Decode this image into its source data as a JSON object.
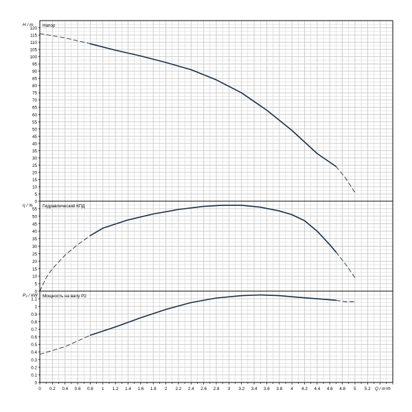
{
  "x_axis": {
    "label": "Q / m³/h",
    "min": 0,
    "max": 5.6,
    "tick_labels": [
      "0",
      "0.2",
      "0.4",
      "0.6",
      "0.8",
      "1",
      "1.2",
      "1.4",
      "1.6",
      "1.8",
      "2",
      "2.2",
      "2.4",
      "2.6",
      "2.8",
      "3",
      "3.2",
      "3.4",
      "3.6",
      "3.8",
      "4",
      "4.2",
      "4.4",
      "4.6",
      "4.8",
      "5",
      "5.2"
    ]
  },
  "colors": {
    "curve": "#1a2a3a",
    "grid": "#c8c8c8",
    "frame": "#000000"
  },
  "chart_data": [
    {
      "type": "line",
      "ylabel": "H / m",
      "series_label": "Напор",
      "ylim": [
        0,
        125
      ],
      "y_ticks": [
        0,
        5,
        10,
        15,
        20,
        25,
        30,
        35,
        40,
        45,
        50,
        55,
        60,
        65,
        70,
        75,
        80,
        85,
        90,
        95,
        100,
        105,
        110,
        115,
        120
      ],
      "grid": true,
      "series": [
        {
          "name": "Напор",
          "style": "dashed",
          "points": [
            [
              0,
              116
            ],
            [
              0.4,
              113
            ],
            [
              0.8,
              109
            ]
          ]
        },
        {
          "name": "Напор",
          "style": "solid",
          "points": [
            [
              0.8,
              109
            ],
            [
              1.2,
              104.5
            ],
            [
              1.6,
              100.5
            ],
            [
              2.0,
              96
            ],
            [
              2.4,
              91
            ],
            [
              2.8,
              84
            ],
            [
              3.2,
              75
            ],
            [
              3.6,
              63
            ],
            [
              4.0,
              49
            ],
            [
              4.4,
              33
            ],
            [
              4.7,
              24
            ]
          ]
        },
        {
          "name": "Напор",
          "style": "dashed",
          "points": [
            [
              4.7,
              24
            ],
            [
              4.85,
              16
            ],
            [
              5.0,
              6
            ]
          ]
        }
      ]
    },
    {
      "type": "line",
      "ylabel": "η / %",
      "series_label": "Гидравлический КПД",
      "ylim": [
        0,
        60
      ],
      "y_ticks": [
        0,
        5,
        10,
        15,
        20,
        25,
        30,
        35,
        40,
        45,
        50,
        55
      ],
      "grid": true,
      "series": [
        {
          "name": "Гидравлический КПД",
          "style": "dashed",
          "points": [
            [
              0,
              0
            ],
            [
              0.1,
              9
            ],
            [
              0.2,
              15
            ],
            [
              0.4,
              24
            ],
            [
              0.6,
              31
            ],
            [
              0.8,
              37
            ]
          ]
        },
        {
          "name": "Гидравлический КПД",
          "style": "solid",
          "points": [
            [
              0.8,
              37
            ],
            [
              1.0,
              42
            ],
            [
              1.4,
              47.5
            ],
            [
              1.8,
              51.5
            ],
            [
              2.2,
              54.5
            ],
            [
              2.6,
              56.5
            ],
            [
              2.9,
              57.3
            ],
            [
              3.2,
              57.3
            ],
            [
              3.5,
              56
            ],
            [
              3.8,
              53.5
            ],
            [
              4.0,
              51
            ],
            [
              4.2,
              47
            ],
            [
              4.4,
              40
            ],
            [
              4.6,
              31
            ],
            [
              4.7,
              26
            ]
          ]
        },
        {
          "name": "Гидравлический КПД",
          "style": "dashed",
          "points": [
            [
              4.7,
              26
            ],
            [
              4.85,
              18
            ],
            [
              5.0,
              9
            ]
          ]
        }
      ]
    },
    {
      "type": "line",
      "ylabel": "P₂ / kW",
      "series_label": "Мощность на валу P2",
      "ylim": [
        0,
        1.2
      ],
      "y_ticks": [
        0,
        0.1,
        0.2,
        0.3,
        0.4,
        0.5,
        0.6,
        0.7,
        0.8,
        0.9,
        1,
        1.1
      ],
      "grid": true,
      "series": [
        {
          "name": "Мощность на валу P2",
          "style": "dashed",
          "points": [
            [
              0,
              0.37
            ],
            [
              0.4,
              0.47
            ],
            [
              0.8,
              0.62
            ]
          ]
        },
        {
          "name": "Мощность на валу P2",
          "style": "solid",
          "points": [
            [
              0.8,
              0.62
            ],
            [
              1.2,
              0.73
            ],
            [
              1.6,
              0.85
            ],
            [
              2.0,
              0.96
            ],
            [
              2.4,
              1.05
            ],
            [
              2.8,
              1.11
            ],
            [
              3.2,
              1.14
            ],
            [
              3.5,
              1.15
            ],
            [
              3.8,
              1.14
            ],
            [
              4.1,
              1.12
            ],
            [
              4.4,
              1.1
            ],
            [
              4.7,
              1.08
            ]
          ]
        },
        {
          "name": "Мощность на валу P2",
          "style": "dashed",
          "points": [
            [
              4.7,
              1.08
            ],
            [
              4.85,
              1.06
            ],
            [
              5.0,
              1.06
            ]
          ]
        }
      ]
    }
  ]
}
